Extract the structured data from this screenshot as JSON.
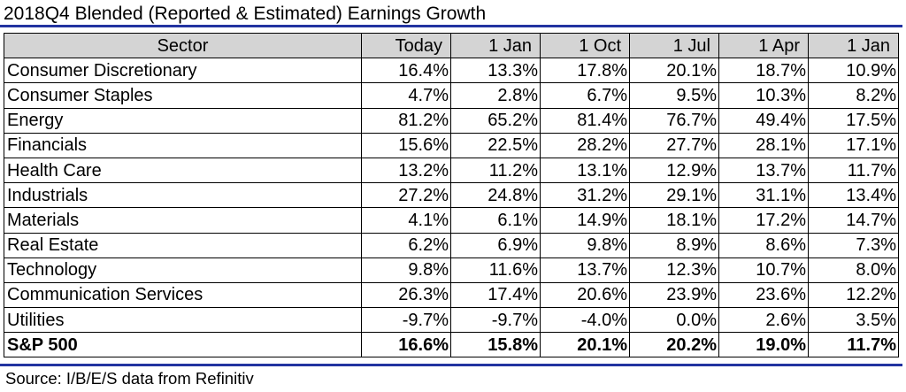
{
  "title": "2018Q4 Blended (Reported & Estimated) Earnings Growth",
  "table": {
    "columns": [
      "Sector",
      "Today",
      "1 Jan",
      "1 Oct",
      "1 Jul",
      "1 Apr",
      "1 Jan"
    ],
    "rows": [
      {
        "sector": "Consumer Discretionary",
        "values": [
          "16.4%",
          "13.3%",
          "17.8%",
          "20.1%",
          "18.7%",
          "10.9%"
        ]
      },
      {
        "sector": "Consumer Staples",
        "values": [
          "4.7%",
          "2.8%",
          "6.7%",
          "9.5%",
          "10.3%",
          "8.2%"
        ]
      },
      {
        "sector": "Energy",
        "values": [
          "81.2%",
          "65.2%",
          "81.4%",
          "76.7%",
          "49.4%",
          "17.5%"
        ]
      },
      {
        "sector": "Financials",
        "values": [
          "15.6%",
          "22.5%",
          "28.2%",
          "27.7%",
          "28.1%",
          "17.1%"
        ]
      },
      {
        "sector": "Health Care",
        "values": [
          "13.2%",
          "11.2%",
          "13.1%",
          "12.9%",
          "13.7%",
          "11.7%"
        ]
      },
      {
        "sector": "Industrials",
        "values": [
          "27.2%",
          "24.8%",
          "31.2%",
          "29.1%",
          "31.1%",
          "13.4%"
        ]
      },
      {
        "sector": "Materials",
        "values": [
          "4.1%",
          "6.1%",
          "14.9%",
          "18.1%",
          "17.2%",
          "14.7%"
        ]
      },
      {
        "sector": "Real Estate",
        "values": [
          "6.2%",
          "6.9%",
          "9.8%",
          "8.9%",
          "8.6%",
          "7.3%"
        ]
      },
      {
        "sector": "Technology",
        "values": [
          "9.8%",
          "11.6%",
          "13.7%",
          "12.3%",
          "10.7%",
          "8.0%"
        ]
      },
      {
        "sector": "Communication Services",
        "values": [
          "26.3%",
          "17.4%",
          "20.6%",
          "23.9%",
          "23.6%",
          "12.2%"
        ]
      },
      {
        "sector": "Utilities",
        "values": [
          "-9.7%",
          "-9.7%",
          "-4.0%",
          "0.0%",
          "2.6%",
          "3.5%"
        ]
      }
    ],
    "total": {
      "sector": "S&P 500",
      "values": [
        "16.6%",
        "15.8%",
        "20.1%",
        "20.2%",
        "19.0%",
        "11.7%"
      ]
    }
  },
  "source": "Source: I/B/E/S data from Refinitiv",
  "colors": {
    "rule": "#2233a0",
    "header_bg": "#d4d4d4"
  }
}
